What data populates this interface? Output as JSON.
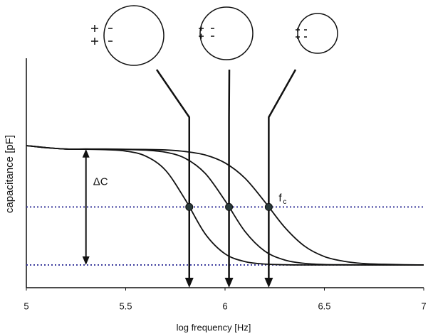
{
  "chart_data": {
    "type": "line",
    "x_label": "log frequency [Hz]",
    "y_label": "capacitance [pF]",
    "x": [
      5.0,
      5.1,
      5.2,
      5.3,
      5.4,
      5.5,
      5.6,
      5.7,
      5.8,
      5.9,
      6.0,
      6.1,
      6.2,
      6.3,
      6.4,
      6.5,
      6.6,
      6.7,
      6.8,
      6.9,
      7.0
    ],
    "series": [
      {
        "color": "#111111",
        "values": [
          62.5,
          61.6,
          61.0,
          60.9,
          60.7,
          60.1,
          57.9,
          51.7,
          38.7,
          23.7,
          14.9,
          11.5,
          10.4,
          10.1,
          10.0,
          10.0,
          10.0,
          10.0,
          10.0,
          10.0,
          10.0
        ]
      },
      {
        "color": "#111111",
        "values": [
          62.5,
          61.6,
          61.0,
          61.0,
          60.9,
          60.8,
          60.5,
          59.6,
          56.9,
          50.3,
          38.3,
          24.8,
          16.1,
          12.2,
          10.7,
          10.2,
          10.1,
          10.0,
          10.0,
          10.0,
          10.0
        ]
      },
      {
        "color": "#111111",
        "values": [
          62.5,
          61.6,
          61.0,
          61.0,
          61.0,
          60.9,
          60.8,
          60.6,
          59.9,
          58.4,
          54.9,
          48.2,
          37.8,
          26.6,
          18.3,
          13.7,
          11.6,
          10.6,
          10.3,
          10.1,
          10.0
        ]
      }
    ],
    "xlim": [
      5,
      7
    ],
    "xticks": [
      5,
      5.5,
      6,
      6.5,
      7
    ],
    "ylim": [
      0,
      100
    ],
    "grid": false,
    "reference_lines": [
      {
        "value": 35.5,
        "color": "#3d3d9e"
      },
      {
        "value": 10,
        "color": "#3d3d9e"
      }
    ],
    "crossover": {
      "x": [
        5.82,
        6.02,
        6.22
      ],
      "y": [
        35.5,
        35.5,
        35.5
      ],
      "color": "#2a3a3a"
    },
    "delta": {
      "text": "ΔC",
      "x": 5.3,
      "from": 10,
      "to": 61
    },
    "fc_label": {
      "text": "f",
      "subscript": "c"
    }
  }
}
